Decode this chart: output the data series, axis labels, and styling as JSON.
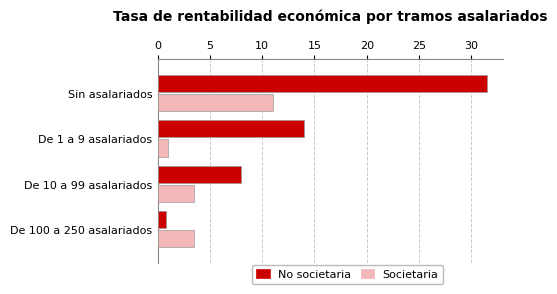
{
  "title": "Tasa de rentabilidad económica por tramos asalariados",
  "categories": [
    "Sin asalariados",
    "De 1 a 9 asalariados",
    "De 10 a 99 asalariados",
    "De 100 a 250 asalariados"
  ],
  "no_societaria": [
    31.5,
    14.0,
    8.0,
    0.8
  ],
  "societaria": [
    11.0,
    1.0,
    3.5,
    3.5
  ],
  "no_societaria_color": "#cc0000",
  "societaria_color": "#f4b8b8",
  "xlim": [
    0,
    33
  ],
  "xticks": [
    0,
    5,
    10,
    15,
    20,
    25,
    30
  ],
  "background_color": "#ffffff",
  "grid_color": "#cccccc",
  "bar_height": 0.38,
  "legend_labels": [
    "No societaria",
    "Societaria"
  ],
  "title_fontsize": 10,
  "tick_fontsize": 8,
  "label_fontsize": 8
}
